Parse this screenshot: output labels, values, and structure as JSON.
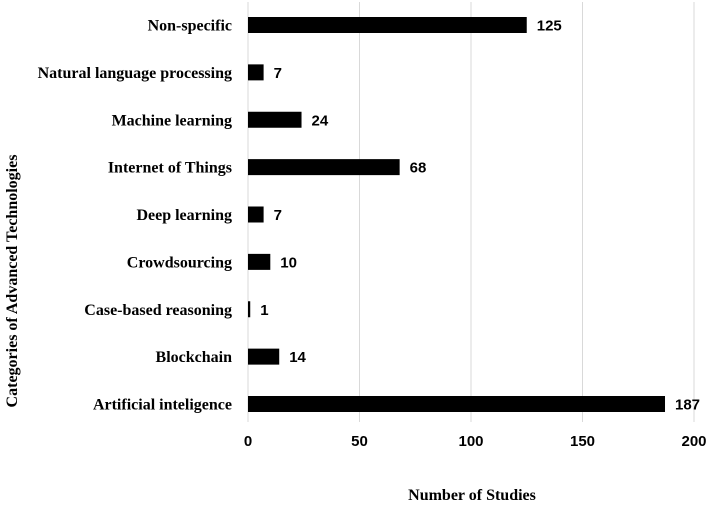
{
  "chart_data": {
    "type": "bar",
    "orientation": "horizontal",
    "categories": [
      "Non-specific",
      "Natural language processing",
      "Machine learning",
      "Internet of Things",
      "Deep learning",
      "Crowdsourcing",
      "Case-based reasoning",
      "Blockchain",
      "Artificial inteligence"
    ],
    "values": [
      125,
      7,
      24,
      68,
      7,
      10,
      1,
      14,
      187
    ],
    "data_labels": [
      "125",
      "7",
      "24",
      "68",
      "7",
      "10",
      "1",
      "14",
      "187"
    ],
    "xlabel": "Number of Studies",
    "ylabel": "Categories of Advanced Technologies",
    "xlim": [
      0,
      200
    ],
    "xticks": [
      0,
      50,
      100,
      150,
      200
    ],
    "xtick_labels": [
      "0",
      "50",
      "100",
      "150",
      "200"
    ],
    "grid": "vertical",
    "bar_color": "#000000",
    "grid_color": "#d9d9d9"
  }
}
